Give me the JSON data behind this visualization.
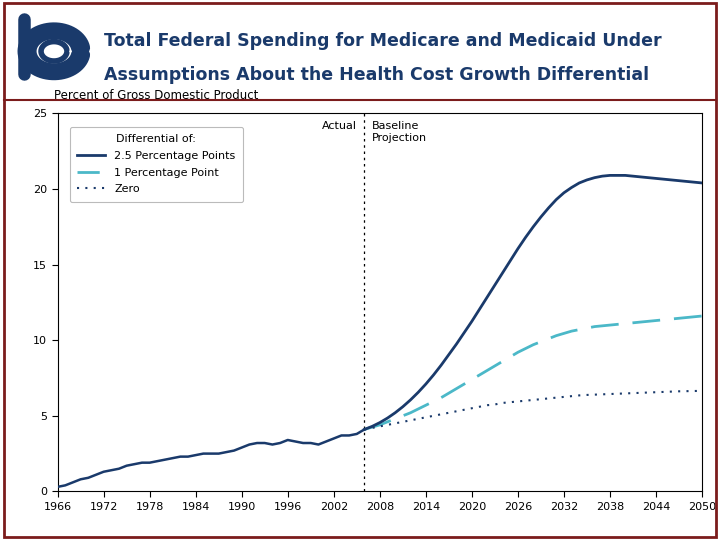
{
  "title_line1": "Total Federal Spending for Medicare and Medicaid Under",
  "title_line2": "Assumptions About the Health Cost Growth Differential",
  "ylabel": "Percent of Gross Domestic Product",
  "ylim": [
    0,
    25
  ],
  "yticks": [
    0,
    5,
    10,
    15,
    20,
    25
  ],
  "xlim": [
    1966,
    2050
  ],
  "xticks": [
    1966,
    1972,
    1978,
    1984,
    1990,
    1996,
    2002,
    2008,
    2014,
    2020,
    2026,
    2032,
    2038,
    2044,
    2050
  ],
  "vline_x": 2006,
  "actual_label": "Actual",
  "projection_label": "Baseline\nProjection",
  "legend_title": "Differential of:",
  "legend_entries": [
    "2.5 Percentage Points",
    "1 Percentage Point",
    "Zero"
  ],
  "color_solid": "#1a3a6b",
  "color_dashed": "#4bb8c8",
  "color_dotted": "#1a3a6b",
  "header_border": "#7B1C1C",
  "logo_color": "#1a3a6b",
  "historical_years": [
    1966,
    1967,
    1968,
    1969,
    1970,
    1971,
    1972,
    1973,
    1974,
    1975,
    1976,
    1977,
    1978,
    1979,
    1980,
    1981,
    1982,
    1983,
    1984,
    1985,
    1986,
    1987,
    1988,
    1989,
    1990,
    1991,
    1992,
    1993,
    1994,
    1995,
    1996,
    1997,
    1998,
    1999,
    2000,
    2001,
    2002,
    2003,
    2004,
    2005,
    2006
  ],
  "historical_values": [
    0.3,
    0.4,
    0.6,
    0.8,
    0.9,
    1.1,
    1.3,
    1.4,
    1.5,
    1.7,
    1.8,
    1.9,
    1.9,
    2.0,
    2.1,
    2.2,
    2.3,
    2.3,
    2.4,
    2.5,
    2.5,
    2.5,
    2.6,
    2.7,
    2.9,
    3.1,
    3.2,
    3.2,
    3.1,
    3.2,
    3.4,
    3.3,
    3.2,
    3.2,
    3.1,
    3.3,
    3.5,
    3.7,
    3.7,
    3.8,
    4.1
  ],
  "projection_years": [
    2006,
    2007,
    2008,
    2009,
    2010,
    2011,
    2012,
    2013,
    2014,
    2015,
    2016,
    2017,
    2018,
    2019,
    2020,
    2021,
    2022,
    2023,
    2024,
    2025,
    2026,
    2027,
    2028,
    2029,
    2030,
    2031,
    2032,
    2033,
    2034,
    2035,
    2036,
    2037,
    2038,
    2039,
    2040,
    2041,
    2042,
    2043,
    2044,
    2045,
    2046,
    2047,
    2048,
    2049,
    2050
  ],
  "proj_solid": [
    4.1,
    4.3,
    4.55,
    4.85,
    5.2,
    5.6,
    6.05,
    6.55,
    7.1,
    7.7,
    8.35,
    9.05,
    9.75,
    10.5,
    11.25,
    12.05,
    12.85,
    13.65,
    14.45,
    15.25,
    16.05,
    16.8,
    17.5,
    18.15,
    18.75,
    19.3,
    19.75,
    20.1,
    20.4,
    20.6,
    20.75,
    20.85,
    20.9,
    20.9,
    20.9,
    20.85,
    20.8,
    20.75,
    20.7,
    20.65,
    20.6,
    20.55,
    20.5,
    20.45,
    20.4
  ],
  "proj_dashed": [
    4.1,
    4.25,
    4.4,
    4.6,
    4.8,
    5.0,
    5.2,
    5.45,
    5.7,
    5.95,
    6.2,
    6.5,
    6.8,
    7.1,
    7.4,
    7.7,
    8.0,
    8.3,
    8.6,
    8.9,
    9.2,
    9.45,
    9.7,
    9.9,
    10.1,
    10.3,
    10.45,
    10.6,
    10.7,
    10.8,
    10.9,
    10.95,
    11.0,
    11.05,
    11.1,
    11.15,
    11.2,
    11.25,
    11.3,
    11.35,
    11.4,
    11.45,
    11.5,
    11.55,
    11.6
  ],
  "proj_dotted": [
    4.1,
    4.2,
    4.3,
    4.4,
    4.5,
    4.6,
    4.7,
    4.8,
    4.9,
    5.0,
    5.1,
    5.2,
    5.3,
    5.4,
    5.5,
    5.6,
    5.7,
    5.75,
    5.85,
    5.9,
    5.95,
    6.0,
    6.05,
    6.1,
    6.15,
    6.2,
    6.25,
    6.3,
    6.35,
    6.38,
    6.4,
    6.42,
    6.44,
    6.46,
    6.48,
    6.5,
    6.52,
    6.54,
    6.56,
    6.58,
    6.6,
    6.62,
    6.63,
    6.64,
    6.65
  ]
}
